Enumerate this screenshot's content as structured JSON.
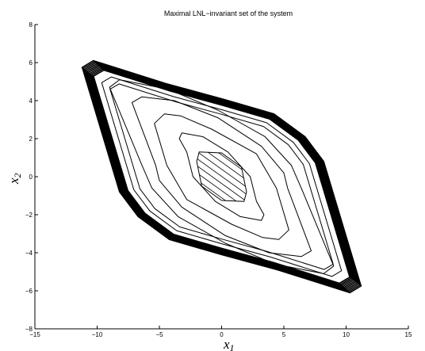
{
  "chart_data": {
    "type": "line",
    "title": "Maximal LNL−invariant set of the system",
    "xlabel": {
      "base": "x",
      "sub": "1"
    },
    "ylabel": {
      "base": "x",
      "sub": "2"
    },
    "xlim": [
      -15,
      15
    ],
    "ylim": [
      -8,
      8
    ],
    "xticks": [
      -15,
      -10,
      -5,
      0,
      5,
      10,
      15
    ],
    "xtick_labels": [
      "−15",
      "−10",
      "−5",
      "0",
      "5",
      "10",
      "15"
    ],
    "yticks": [
      -8,
      -6,
      -4,
      -2,
      0,
      2,
      4,
      6,
      8
    ],
    "ytick_labels": [
      "−8",
      "−6",
      "−4",
      "−2",
      "0",
      "2",
      "4",
      "6",
      "8"
    ],
    "grid": false,
    "line_color": "#000000",
    "outer_contour": [
      [
        -10.3,
        6.1
      ],
      [
        -4.5,
        4.9
      ],
      [
        0,
        4.1
      ],
      [
        4.2,
        3.3
      ],
      [
        6.7,
        2.1
      ],
      [
        8.2,
        0.8
      ],
      [
        11.2,
        -5.75
      ],
      [
        10.3,
        -6.1
      ],
      [
        4.5,
        -4.9
      ],
      [
        0,
        -4.1
      ],
      [
        -4.2,
        -3.3
      ],
      [
        -6.7,
        -2.1
      ],
      [
        -8.2,
        -0.8
      ],
      [
        -11.2,
        5.75
      ]
    ],
    "inner_contours": [
      [
        [
          -8.2,
          5.1
        ],
        [
          -4.3,
          4.6
        ],
        [
          -0.3,
          3.5
        ],
        [
          3.5,
          2.1
        ],
        [
          5.6,
          0.6
        ],
        [
          6.4,
          -0.6
        ],
        [
          9.0,
          -4.7
        ],
        [
          8.2,
          -5.1
        ],
        [
          4.3,
          -4.6
        ],
        [
          0.3,
          -3.5
        ],
        [
          -3.5,
          -2.1
        ],
        [
          -5.6,
          -0.6
        ],
        [
          -6.4,
          0.6
        ],
        [
          -9.0,
          4.7
        ]
      ],
      [
        [
          -6.4,
          4.2
        ],
        [
          -3.8,
          4.0
        ],
        [
          -0.3,
          3.1
        ],
        [
          3.2,
          1.6
        ],
        [
          5.0,
          0.2
        ],
        [
          5.3,
          -0.6
        ],
        [
          7.2,
          -3.9
        ],
        [
          6.4,
          -4.2
        ],
        [
          3.8,
          -4.0
        ],
        [
          0.3,
          -3.1
        ],
        [
          -3.2,
          -1.6
        ],
        [
          -5.0,
          -0.2
        ],
        [
          -5.3,
          0.6
        ],
        [
          -7.2,
          3.9
        ]
      ],
      [
        [
          -4.6,
          3.3
        ],
        [
          -3.3,
          3.2
        ],
        [
          -0.8,
          2.5
        ],
        [
          2.8,
          1.2
        ],
        [
          4.4,
          -0.6
        ],
        [
          5.4,
          -2.8
        ],
        [
          4.6,
          -3.3
        ],
        [
          3.3,
          -3.2
        ],
        [
          0.8,
          -2.5
        ],
        [
          -2.8,
          -1.2
        ],
        [
          -4.4,
          0.6
        ],
        [
          -5.4,
          2.8
        ]
      ],
      [
        [
          -3.2,
          2.3
        ],
        [
          -1.5,
          2.1
        ],
        [
          0.5,
          1.3
        ],
        [
          2.3,
          0
        ],
        [
          2.8,
          -1.3
        ],
        [
          3.4,
          -2.0
        ],
        [
          3.2,
          -2.3
        ],
        [
          1.5,
          -2.1
        ],
        [
          -0.5,
          -1.3
        ],
        [
          -2.3,
          0
        ],
        [
          -2.8,
          1.3
        ],
        [
          -3.4,
          2.0
        ]
      ],
      [
        [
          -1.8,
          1.3
        ],
        [
          0,
          1.25
        ],
        [
          1.6,
          0.5
        ],
        [
          2.0,
          -0.8
        ],
        [
          1.8,
          -1.3
        ],
        [
          0,
          -1.25
        ],
        [
          -1.6,
          -0.5
        ],
        [
          -2.0,
          0.8
        ]
      ]
    ],
    "hatch_region": [
      [
        -1.8,
        1.3
      ],
      [
        0,
        1.25
      ],
      [
        1.6,
        0.5
      ],
      [
        2.0,
        -0.8
      ],
      [
        1.8,
        -1.3
      ],
      [
        0,
        -1.25
      ],
      [
        -1.6,
        -0.5
      ],
      [
        -2.0,
        0.8
      ]
    ]
  }
}
